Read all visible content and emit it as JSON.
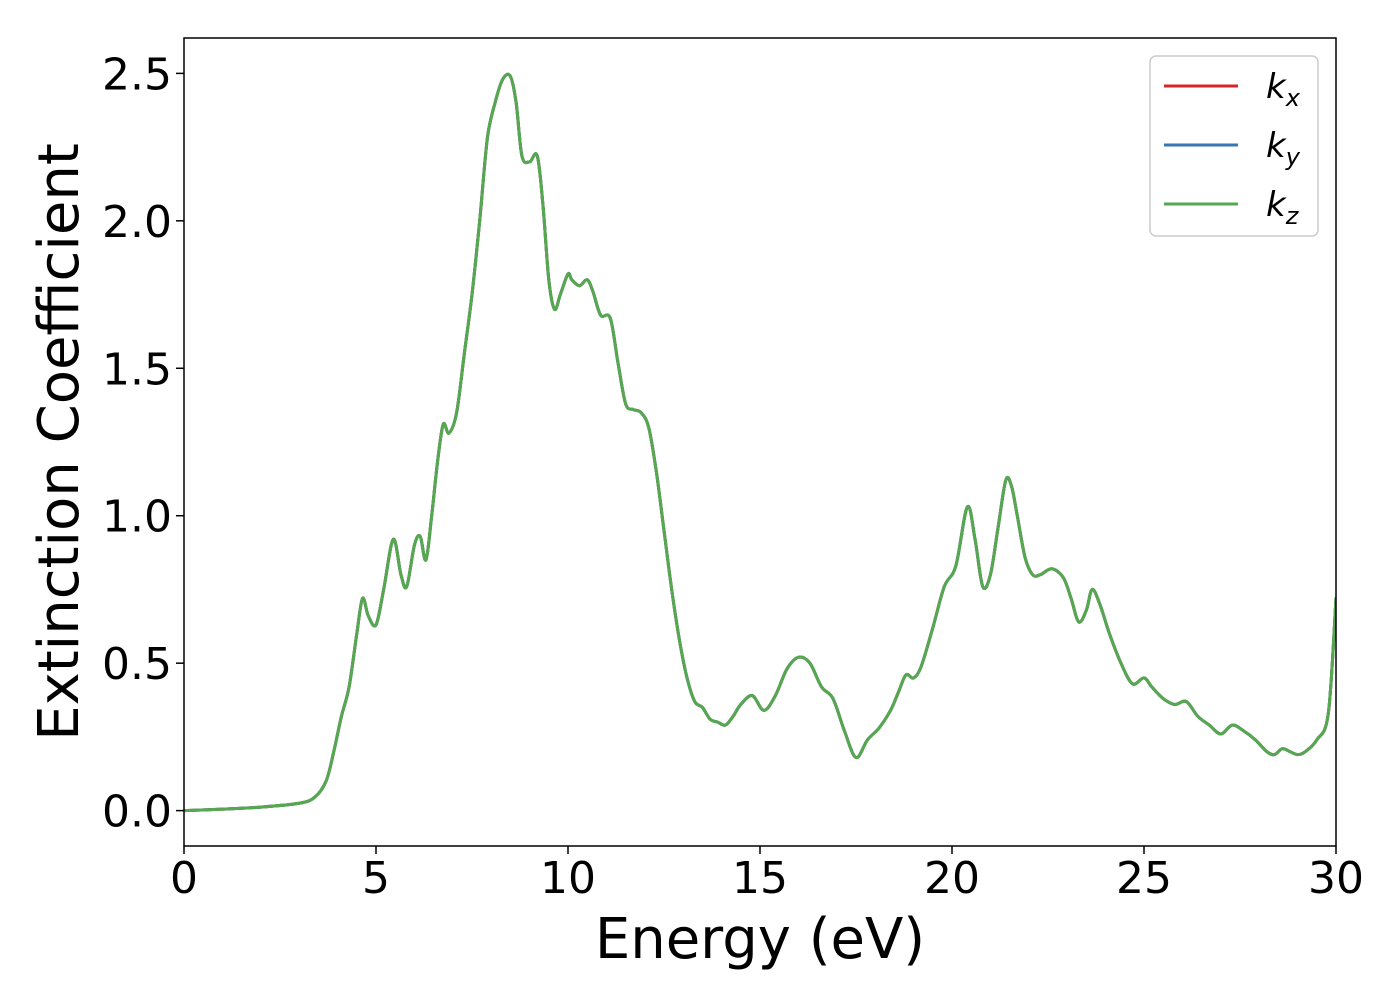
{
  "chart_data": {
    "type": "line",
    "xlabel": "Energy (eV)",
    "ylabel": "Extinction Coefficient",
    "xlim": [
      0,
      30
    ],
    "ylim": [
      -0.12,
      2.62
    ],
    "xticks": [
      0,
      5,
      10,
      15,
      20,
      25,
      30
    ],
    "yticks": [
      0.0,
      0.5,
      1.0,
      1.5,
      2.0,
      2.5
    ],
    "xtick_labels": [
      "0",
      "5",
      "10",
      "15",
      "20",
      "25",
      "30"
    ],
    "ytick_labels": [
      "0.0",
      "0.5",
      "1.0",
      "1.5",
      "2.0",
      "2.5"
    ],
    "grid": false,
    "legend_position": "top-right",
    "series": [
      {
        "name": "k",
        "subscript": "x",
        "color": "#d62728"
      },
      {
        "name": "k",
        "subscript": "y",
        "color": "#3a76b0"
      },
      {
        "name": "k",
        "subscript": "z",
        "color": "#55a84f"
      }
    ],
    "x": [
      0,
      1,
      2,
      3,
      3.4,
      3.7,
      3.9,
      4.1,
      4.3,
      4.5,
      4.65,
      4.8,
      5.0,
      5.2,
      5.45,
      5.65,
      5.8,
      6.0,
      6.15,
      6.3,
      6.45,
      6.6,
      6.75,
      6.9,
      7.1,
      7.3,
      7.5,
      7.7,
      7.9,
      8.1,
      8.3,
      8.5,
      8.65,
      8.8,
      9.0,
      9.2,
      9.35,
      9.5,
      9.65,
      9.8,
      10.0,
      10.1,
      10.3,
      10.5,
      10.65,
      10.85,
      11.1,
      11.3,
      11.5,
      11.7,
      11.9,
      12.1,
      12.3,
      12.5,
      12.7,
      12.9,
      13.1,
      13.3,
      13.5,
      13.7,
      13.9,
      14.1,
      14.3,
      14.5,
      14.8,
      15.1,
      15.4,
      15.7,
      16.0,
      16.3,
      16.6,
      16.9,
      17.2,
      17.5,
      17.8,
      18.1,
      18.4,
      18.6,
      18.8,
      19.0,
      19.2,
      19.5,
      19.8,
      20.1,
      20.4,
      20.6,
      20.8,
      21.0,
      21.2,
      21.4,
      21.55,
      21.7,
      21.9,
      22.1,
      22.3,
      22.6,
      22.9,
      23.1,
      23.3,
      23.5,
      23.65,
      23.85,
      24.1,
      24.4,
      24.7,
      25.0,
      25.2,
      25.5,
      25.8,
      26.1,
      26.4,
      26.7,
      27.0,
      27.3,
      27.6,
      27.9,
      28.2,
      28.4,
      28.6,
      28.8,
      29.0,
      29.2,
      29.5,
      29.8,
      30.0
    ],
    "y": [
      0.0,
      0.005,
      0.012,
      0.025,
      0.045,
      0.1,
      0.2,
      0.32,
      0.42,
      0.6,
      0.72,
      0.66,
      0.63,
      0.75,
      0.92,
      0.8,
      0.76,
      0.9,
      0.93,
      0.85,
      1.0,
      1.18,
      1.31,
      1.28,
      1.35,
      1.55,
      1.75,
      2.0,
      2.28,
      2.4,
      2.48,
      2.49,
      2.4,
      2.22,
      2.2,
      2.22,
      2.05,
      1.8,
      1.7,
      1.75,
      1.82,
      1.8,
      1.78,
      1.8,
      1.76,
      1.68,
      1.67,
      1.52,
      1.38,
      1.36,
      1.35,
      1.3,
      1.15,
      0.95,
      0.75,
      0.58,
      0.45,
      0.37,
      0.35,
      0.31,
      0.3,
      0.29,
      0.32,
      0.36,
      0.39,
      0.34,
      0.39,
      0.48,
      0.52,
      0.5,
      0.42,
      0.38,
      0.27,
      0.18,
      0.24,
      0.28,
      0.34,
      0.4,
      0.46,
      0.45,
      0.49,
      0.62,
      0.76,
      0.83,
      1.03,
      0.92,
      0.76,
      0.8,
      0.96,
      1.12,
      1.1,
      1.0,
      0.86,
      0.8,
      0.8,
      0.82,
      0.79,
      0.72,
      0.64,
      0.68,
      0.75,
      0.7,
      0.6,
      0.5,
      0.43,
      0.45,
      0.42,
      0.38,
      0.36,
      0.37,
      0.32,
      0.29,
      0.26,
      0.29,
      0.27,
      0.24,
      0.2,
      0.19,
      0.21,
      0.2,
      0.19,
      0.2,
      0.24,
      0.33,
      0.72
    ]
  }
}
